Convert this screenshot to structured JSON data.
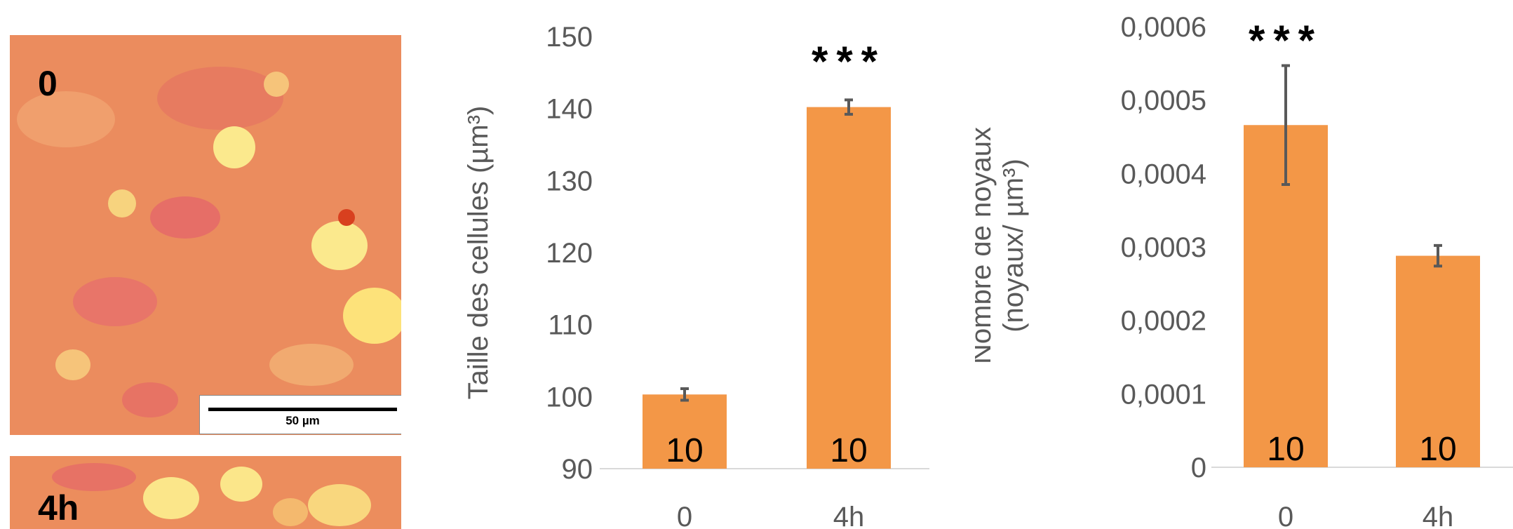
{
  "micrographs": {
    "top_label": "0",
    "bottom_label": "4h",
    "scale_bar_label": "50 µm"
  },
  "chart_data": [
    {
      "type": "bar",
      "categories": [
        "0",
        "4h"
      ],
      "values": [
        100.3,
        140.2
      ],
      "errors": [
        0.8,
        1.0
      ],
      "bar_labels": [
        "10",
        "10"
      ],
      "significance": [
        "",
        "***"
      ],
      "ylabel": "Taille des cellules (µm³)",
      "ylim": [
        90,
        150
      ],
      "yticks": [
        "90",
        "100",
        "110",
        "120",
        "130",
        "140",
        "150"
      ],
      "ytick_values": [
        90,
        100,
        110,
        120,
        130,
        140,
        150
      ],
      "bar_color": "#f39747",
      "grid": false
    },
    {
      "type": "bar",
      "categories": [
        "0",
        "4h"
      ],
      "values": [
        0.000466,
        0.000288
      ],
      "errors": [
        8.1e-05,
        1.4e-05
      ],
      "bar_labels": [
        "10",
        "10"
      ],
      "significance": [
        "***",
        ""
      ],
      "ylabel": "Nombre de noyaux (noyaux/ µm³)",
      "ylim": [
        0,
        0.0006
      ],
      "yticks": [
        "0",
        "0,0001",
        "0,0002",
        "0,0003",
        "0,0004",
        "0,0005",
        "0,0006"
      ],
      "ytick_values": [
        0,
        0.0001,
        0.0002,
        0.0003,
        0.0004,
        0.0005,
        0.0006
      ],
      "bar_color": "#f39747",
      "grid": false
    }
  ]
}
